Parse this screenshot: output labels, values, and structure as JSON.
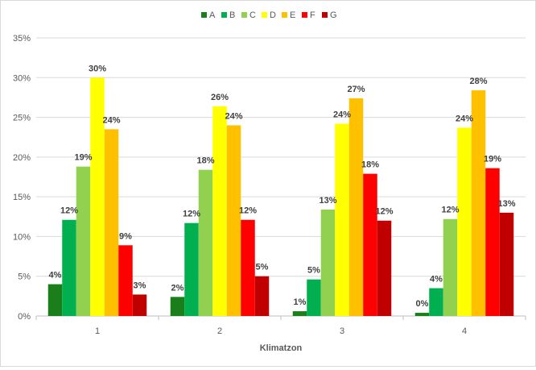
{
  "chart_data": {
    "type": "bar",
    "xlabel": "Klimatzon",
    "ylabel": "",
    "ylim": [
      0,
      35
    ],
    "yticks": [
      "0%",
      "5%",
      "10%",
      "15%",
      "20%",
      "25%",
      "30%",
      "35%"
    ],
    "ytick_values": [
      0,
      5,
      10,
      15,
      20,
      25,
      30,
      35
    ],
    "grid": true,
    "legend_position": "top",
    "categories": [
      "1",
      "2",
      "3",
      "4"
    ],
    "series": [
      {
        "name": "A",
        "color": "#1a7f1a",
        "values": [
          4.0,
          2.4,
          0.6,
          0.4
        ],
        "labels": [
          "4%",
          "2%",
          "1%",
          "0%"
        ]
      },
      {
        "name": "B",
        "color": "#00b050",
        "values": [
          12.1,
          11.7,
          4.6,
          3.5
        ],
        "labels": [
          "12%",
          "12%",
          "5%",
          "4%"
        ]
      },
      {
        "name": "C",
        "color": "#92d050",
        "values": [
          18.8,
          18.4,
          13.4,
          12.2
        ],
        "labels": [
          "19%",
          "18%",
          "13%",
          "12%"
        ]
      },
      {
        "name": "D",
        "color": "#ffff00",
        "values": [
          30.0,
          26.4,
          24.2,
          23.7
        ],
        "labels": [
          "30%",
          "26%",
          "24%",
          "24%"
        ]
      },
      {
        "name": "E",
        "color": "#ffc000",
        "values": [
          23.5,
          24.0,
          27.4,
          28.4
        ],
        "labels": [
          "24%",
          "24%",
          "27%",
          "28%"
        ]
      },
      {
        "name": "F",
        "color": "#ff0000",
        "values": [
          8.9,
          12.1,
          17.9,
          18.6
        ],
        "labels": [
          "9%",
          "12%",
          "18%",
          "19%"
        ]
      },
      {
        "name": "G",
        "color": "#c00000",
        "values": [
          2.7,
          5.0,
          12.0,
          13.0
        ],
        "labels": [
          "3%",
          "5%",
          "12%",
          "13%"
        ]
      }
    ]
  }
}
